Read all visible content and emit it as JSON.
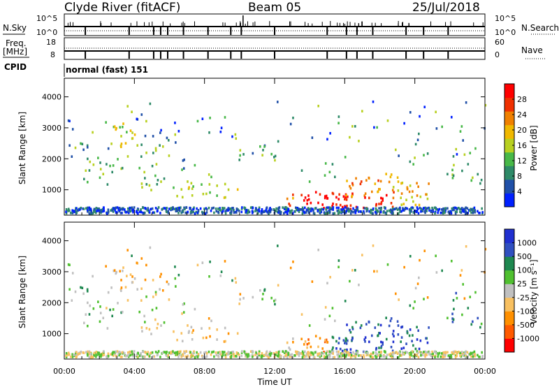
{
  "chart_data": {
    "type": "heatmap",
    "header": {
      "station": "Clyde River (fitACF)",
      "beam": "Beam 05",
      "date": "25/Jul/2018"
    },
    "top_panel": {
      "left_label": "N.Sky",
      "right_label": "N.Search",
      "left_ticks": [
        "10^5",
        "10^0"
      ],
      "right_ticks": [
        "10^5",
        "10^0"
      ]
    },
    "freq_panel": {
      "left_label_1": "Freq.",
      "left_label_2": "[MHz]",
      "right_label": "Nave",
      "left_ticks": [
        "18",
        "8"
      ],
      "right_ticks": [
        "60",
        "0"
      ]
    },
    "cpid": {
      "label": "CPID",
      "value": "normal (fast) 151"
    },
    "x_axis": {
      "label": "Time UT",
      "ticks": [
        "00:00",
        "04:00",
        "08:00",
        "12:00",
        "16:00",
        "20:00",
        "00:00"
      ],
      "range_hours": [
        0,
        24
      ]
    },
    "y_axis": {
      "label": "Slant Range [km]",
      "ticks": [
        1000,
        2000,
        3000,
        4000
      ],
      "range": [
        180,
        4600
      ]
    },
    "panels": [
      {
        "name": "power",
        "colorbar_label": "Power [dB]",
        "colorbar_ticks": [
          "4",
          "8",
          "12",
          "16",
          "20",
          "24",
          "28"
        ],
        "colors": [
          "#0020ff",
          "#2050a8",
          "#2e8a68",
          "#48b848",
          "#b8d020",
          "#f0b800",
          "#f08000",
          "#f03000",
          "#ff0000"
        ]
      },
      {
        "name": "velocity",
        "colorbar_label": "Velocity [m s⁻¹]",
        "colorbar_ticks": [
          "-1000",
          "-500",
          "-100",
          "-25",
          "25",
          "100",
          "500",
          "1000"
        ],
        "colors": [
          "#ff0000",
          "#ff5a00",
          "#ff9000",
          "#f8c060",
          "#c0c0c0",
          "#50c030",
          "#1e8850",
          "#3050c0",
          "#2030d0"
        ]
      }
    ]
  }
}
